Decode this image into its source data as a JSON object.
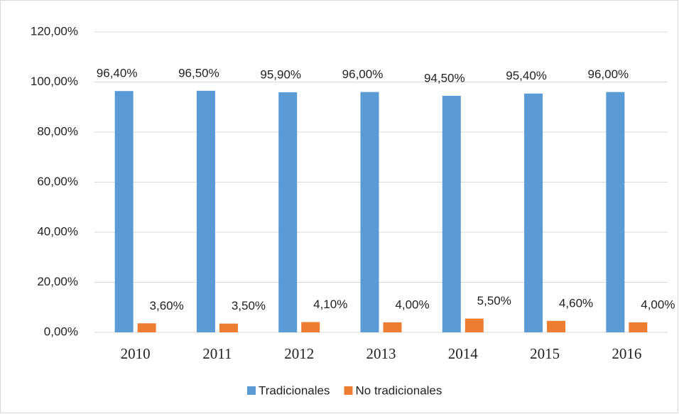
{
  "chart_data": {
    "type": "bar",
    "categories": [
      "2010",
      "2011",
      "2012",
      "2013",
      "2014",
      "2015",
      "2016"
    ],
    "series": [
      {
        "name": "Tradicionales",
        "color": "#5b9bd5",
        "values": [
          96.4,
          96.5,
          95.9,
          96.0,
          94.5,
          95.4,
          96.0
        ],
        "value_labels": [
          "96,40%",
          "96,50%",
          "95,90%",
          "96,00%",
          "94,50%",
          "95,40%",
          "96,00%"
        ]
      },
      {
        "name": "No tradicionales",
        "color": "#ed7d31",
        "values": [
          3.6,
          3.5,
          4.1,
          4.0,
          5.5,
          4.6,
          4.0
        ],
        "value_labels": [
          "3,60%",
          "3,50%",
          "4,10%",
          "4,00%",
          "5,50%",
          "4,60%",
          "4,00%"
        ]
      }
    ],
    "ylim": [
      0,
      120
    ],
    "yticks": [
      {
        "value": 0,
        "label": "0,00%"
      },
      {
        "value": 20,
        "label": "20,00%"
      },
      {
        "value": 40,
        "label": "40,00%"
      },
      {
        "value": 60,
        "label": "60,00%"
      },
      {
        "value": 80,
        "label": "80,00%"
      },
      {
        "value": 100,
        "label": "100,00%"
      },
      {
        "value": 120,
        "label": "120,00%"
      }
    ],
    "grid": true,
    "legend": "bottom"
  }
}
